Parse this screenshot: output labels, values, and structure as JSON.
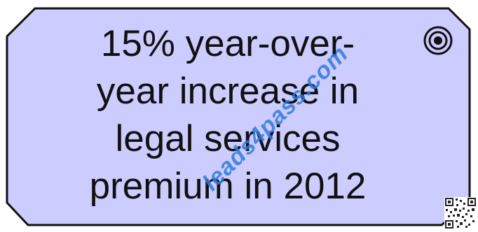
{
  "element": {
    "type": "artifact",
    "icon": "artifact-icon",
    "lines": [
      "15% year-over-",
      "year increase in",
      "legal services",
      "premium in 2012"
    ],
    "fill_color": "#ccccff",
    "border_color": "#111111"
  },
  "watermark": {
    "text": "leads4pass.com",
    "color": "#2f7bdc"
  },
  "qr": {
    "icon": "qr-code-icon"
  }
}
